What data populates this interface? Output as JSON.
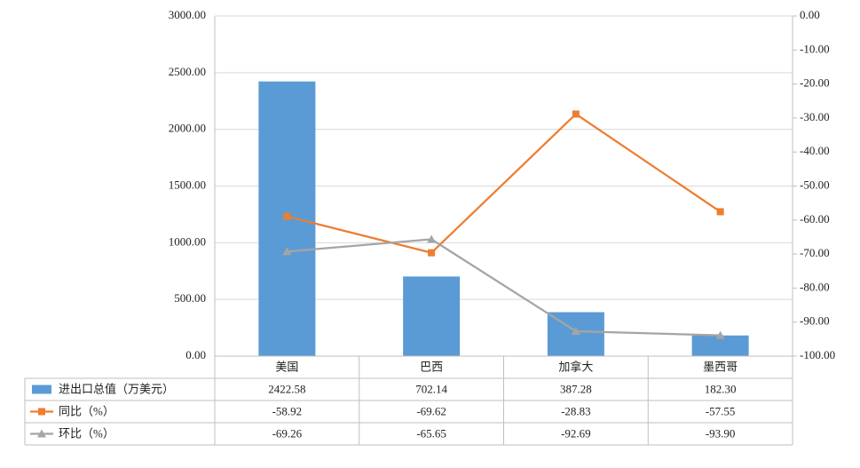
{
  "chart_data": {
    "type": "bar",
    "categories": [
      "美国",
      "巴西",
      "加拿大",
      "墨西哥"
    ],
    "series": [
      {
        "name": "进出口总值（万美元）",
        "color": "#5B9BD5",
        "values": [
          2422.58,
          702.14,
          387.28,
          182.3
        ],
        "value_labels": [
          "2422.58",
          "702.14",
          "387.28",
          "182.30"
        ]
      },
      {
        "name": "同比（%）",
        "type": "line",
        "axis": "y2",
        "marker": "square",
        "color": "#ED7D31",
        "values": [
          -58.92,
          -69.62,
          -28.83,
          -57.55
        ],
        "value_labels": [
          "-58.92",
          "-69.62",
          "-28.83",
          "-57.55"
        ]
      },
      {
        "name": "环比（%）",
        "type": "line",
        "axis": "y2",
        "marker": "triangle",
        "color": "#A5A5A5",
        "values": [
          -69.26,
          -65.65,
          -92.69,
          -93.9
        ],
        "value_labels": [
          "-69.26",
          "-65.65",
          "-92.69",
          "-93.90"
        ]
      }
    ],
    "ylim": [
      0,
      3000
    ],
    "yticks": [
      {
        "value": 0,
        "label": "0.00"
      },
      {
        "value": 500,
        "label": "500.00"
      },
      {
        "value": 1000,
        "label": "1000.00"
      },
      {
        "value": 1500,
        "label": "1500.00"
      },
      {
        "value": 2000,
        "label": "2000.00"
      },
      {
        "value": 2500,
        "label": "2500.00"
      },
      {
        "value": 3000,
        "label": "3000.00"
      }
    ],
    "y2lim": [
      -100,
      0
    ],
    "y2ticks": [
      {
        "value": 0,
        "label": "0.00"
      },
      {
        "value": -10,
        "label": "-10.00"
      },
      {
        "value": -20,
        "label": "-20.00"
      },
      {
        "value": -30,
        "label": "-30.00"
      },
      {
        "value": -40,
        "label": "-40.00"
      },
      {
        "value": -50,
        "label": "-50.00"
      },
      {
        "value": -60,
        "label": "-60.00"
      },
      {
        "value": -70,
        "label": "-70.00"
      },
      {
        "value": -80,
        "label": "-80.00"
      },
      {
        "value": -90,
        "label": "-90.00"
      },
      {
        "value": -100,
        "label": "-100.00"
      }
    ],
    "grid": true
  }
}
